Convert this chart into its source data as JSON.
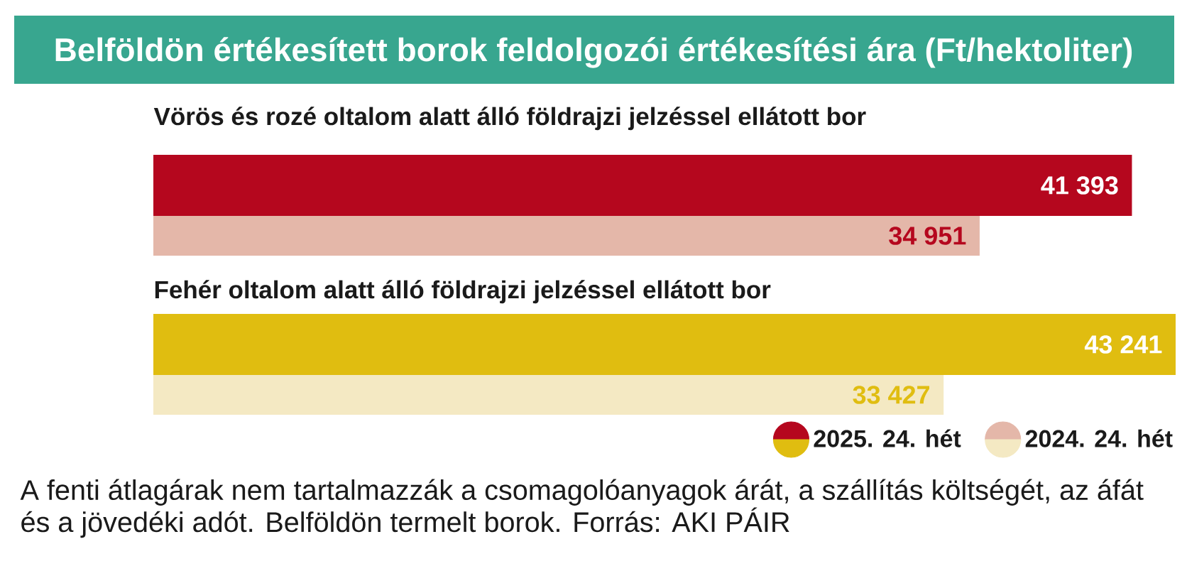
{
  "chart_data": {
    "type": "bar",
    "orientation": "horizontal",
    "title": "Belföldön értékesített borok feldolgozói értékesítési ára (Ft/hektoliter)",
    "categories": [
      "Vörös és rozé oltalom alatt álló földrajzi jelzéssel ellátott bor",
      "Fehér oltalom alatt álló földrajzi jelzéssel ellátott bor"
    ],
    "series": [
      {
        "name": "2025. 24. hét",
        "colors": [
          "#b5071e",
          "#e0bd10"
        ],
        "values": [
          41393,
          43241
        ],
        "value_labels": [
          "41 393",
          "43 241"
        ]
      },
      {
        "name": "2024. 24. hét",
        "colors": [
          "#e4b7a9",
          "#f4e9c3"
        ],
        "values": [
          34951,
          33427
        ],
        "value_labels": [
          "34 951",
          "33 427"
        ]
      }
    ],
    "legend": "bottom right",
    "annotations": [
      "A fenti átlagárak nem tartalmazzák a csomagolóanyagok árát, a szállítás költségét, az áfát és a jövedéki adót. Belföldön termelt borok. Forrás: AKI PÁIR"
    ]
  }
}
